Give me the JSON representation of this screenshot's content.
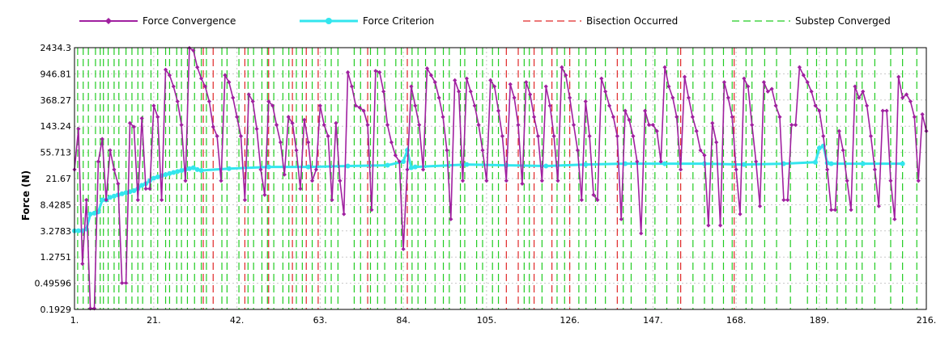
{
  "chart_data": {
    "type": "line",
    "title": "",
    "xlabel": "",
    "ylabel": "Force (N)",
    "y_scale": "log",
    "ylim": [
      0.1929,
      2434.3
    ],
    "xlim": [
      1,
      216
    ],
    "x_ticks": [
      "1.",
      "21.",
      "42.",
      "63.",
      "84.",
      "105.",
      "126.",
      "147.",
      "168.",
      "189.",
      "216."
    ],
    "x_tick_values": [
      1,
      21,
      42,
      63,
      84,
      105,
      126,
      147,
      168,
      189,
      216
    ],
    "y_ticks": [
      "0.1929",
      "0.49596",
      "1.2751",
      "3.2783",
      "8.4285",
      "21.67",
      "55.713",
      "143.24",
      "368.27",
      "946.81",
      "2434.3"
    ],
    "y_tick_values": [
      0.1929,
      0.49596,
      1.2751,
      3.2783,
      8.4285,
      21.67,
      55.713,
      143.24,
      368.27,
      946.81,
      2434.3
    ],
    "grid": true,
    "legend_position": "top",
    "legend": [
      {
        "label": "Force Convergence",
        "color": "#a020a0",
        "style": "solid-diamond"
      },
      {
        "label": "Force Criterion",
        "color": "#33e6ee",
        "style": "solid-circle"
      },
      {
        "label": "Bisection Occurred",
        "color": "#e02828",
        "style": "dashed"
      },
      {
        "label": "Substep Converged",
        "color": "#22cc22",
        "style": "dashed"
      }
    ],
    "series": [
      {
        "name": "Force Convergence",
        "color": "#a020a0",
        "points": [
          [
            1,
            30
          ],
          [
            2,
            130
          ],
          [
            3,
            1
          ],
          [
            4,
            10
          ],
          [
            5,
            0.2
          ],
          [
            6,
            0.2
          ],
          [
            7,
            40
          ],
          [
            8,
            90
          ],
          [
            9,
            10
          ],
          [
            10,
            60
          ],
          [
            11,
            30
          ],
          [
            12,
            18
          ],
          [
            13,
            0.5
          ],
          [
            14,
            0.5
          ],
          [
            15,
            160
          ],
          [
            16,
            140
          ],
          [
            17,
            10
          ],
          [
            18,
            190
          ],
          [
            19,
            15
          ],
          [
            20,
            15
          ],
          [
            21,
            300
          ],
          [
            22,
            200
          ],
          [
            23,
            10
          ],
          [
            24,
            1100
          ],
          [
            25,
            900
          ],
          [
            26,
            600
          ],
          [
            27,
            350
          ],
          [
            28,
            150
          ],
          [
            29,
            20
          ],
          [
            30,
            2400
          ],
          [
            31,
            2200
          ],
          [
            32,
            1200
          ],
          [
            33,
            800
          ],
          [
            34,
            600
          ],
          [
            35,
            350
          ],
          [
            36,
            140
          ],
          [
            37,
            100
          ],
          [
            38,
            20
          ],
          [
            39,
            900
          ],
          [
            40,
            700
          ],
          [
            41,
            400
          ],
          [
            42,
            200
          ],
          [
            43,
            100
          ],
          [
            44,
            10
          ],
          [
            45,
            450
          ],
          [
            46,
            350
          ],
          [
            47,
            130
          ],
          [
            48,
            30
          ],
          [
            49,
            12
          ],
          [
            50,
            350
          ],
          [
            51,
            300
          ],
          [
            52,
            150
          ],
          [
            53,
            80
          ],
          [
            54,
            25
          ],
          [
            55,
            200
          ],
          [
            56,
            160
          ],
          [
            57,
            60
          ],
          [
            58,
            15
          ],
          [
            59,
            180
          ],
          [
            60,
            80
          ],
          [
            61,
            20
          ],
          [
            62,
            30
          ],
          [
            63,
            300
          ],
          [
            64,
            150
          ],
          [
            65,
            100
          ],
          [
            66,
            10
          ],
          [
            67,
            160
          ],
          [
            68,
            20
          ],
          [
            69,
            6
          ],
          [
            70,
            1000
          ],
          [
            71,
            600
          ],
          [
            72,
            300
          ],
          [
            73,
            280
          ],
          [
            74,
            250
          ],
          [
            75,
            150
          ],
          [
            76,
            7
          ],
          [
            77,
            1050
          ],
          [
            78,
            1000
          ],
          [
            79,
            500
          ],
          [
            80,
            150
          ],
          [
            81,
            80
          ],
          [
            82,
            50
          ],
          [
            83,
            40
          ],
          [
            84,
            1.7
          ],
          [
            85,
            30
          ],
          [
            86,
            600
          ],
          [
            87,
            300
          ],
          [
            88,
            150
          ],
          [
            89,
            30
          ],
          [
            90,
            1150
          ],
          [
            91,
            900
          ],
          [
            92,
            700
          ],
          [
            93,
            400
          ],
          [
            94,
            200
          ],
          [
            95,
            60
          ],
          [
            96,
            5
          ],
          [
            97,
            750
          ],
          [
            98,
            500
          ],
          [
            99,
            20
          ],
          [
            100,
            800
          ],
          [
            101,
            500
          ],
          [
            102,
            300
          ],
          [
            103,
            150
          ],
          [
            104,
            60
          ],
          [
            105,
            20
          ],
          [
            106,
            750
          ],
          [
            107,
            600
          ],
          [
            108,
            250
          ],
          [
            109,
            100
          ],
          [
            110,
            20
          ],
          [
            111,
            650
          ],
          [
            112,
            400
          ],
          [
            113,
            150
          ],
          [
            114,
            18
          ],
          [
            115,
            700
          ],
          [
            116,
            450
          ],
          [
            117,
            200
          ],
          [
            118,
            100
          ],
          [
            119,
            20
          ],
          [
            120,
            600
          ],
          [
            121,
            300
          ],
          [
            122,
            100
          ],
          [
            123,
            20
          ],
          [
            124,
            1200
          ],
          [
            125,
            900
          ],
          [
            126,
            400
          ],
          [
            127,
            150
          ],
          [
            128,
            60
          ],
          [
            129,
            10
          ],
          [
            130,
            350
          ],
          [
            131,
            100
          ],
          [
            132,
            12
          ],
          [
            133,
            10
          ],
          [
            134,
            800
          ],
          [
            135,
            500
          ],
          [
            136,
            300
          ],
          [
            137,
            200
          ],
          [
            138,
            100
          ],
          [
            139,
            5
          ],
          [
            140,
            250
          ],
          [
            141,
            180
          ],
          [
            142,
            100
          ],
          [
            143,
            40
          ],
          [
            144,
            3
          ],
          [
            145,
            250
          ],
          [
            146,
            150
          ],
          [
            147,
            150
          ],
          [
            148,
            120
          ],
          [
            149,
            40
          ],
          [
            150,
            1200
          ],
          [
            151,
            600
          ],
          [
            152,
            400
          ],
          [
            153,
            200
          ],
          [
            154,
            30
          ],
          [
            155,
            850
          ],
          [
            156,
            400
          ],
          [
            157,
            200
          ],
          [
            158,
            120
          ],
          [
            159,
            60
          ],
          [
            160,
            50
          ],
          [
            161,
            4
          ],
          [
            162,
            160
          ],
          [
            163,
            80
          ],
          [
            164,
            4
          ],
          [
            165,
            700
          ],
          [
            166,
            400
          ],
          [
            167,
            200
          ],
          [
            168,
            30
          ],
          [
            169,
            6
          ],
          [
            170,
            800
          ],
          [
            171,
            600
          ],
          [
            172,
            150
          ],
          [
            173,
            40
          ],
          [
            174,
            8
          ],
          [
            175,
            700
          ],
          [
            176,
            500
          ],
          [
            177,
            550
          ],
          [
            178,
            300
          ],
          [
            179,
            200
          ],
          [
            180,
            10
          ],
          [
            181,
            10
          ],
          [
            182,
            150
          ],
          [
            183,
            150
          ],
          [
            184,
            1200
          ],
          [
            185,
            900
          ],
          [
            186,
            700
          ],
          [
            187,
            500
          ],
          [
            188,
            300
          ],
          [
            189,
            250
          ],
          [
            190,
            100
          ],
          [
            191,
            30
          ],
          [
            192,
            7
          ],
          [
            193,
            7
          ],
          [
            194,
            120
          ],
          [
            195,
            60
          ],
          [
            196,
            20
          ],
          [
            197,
            7
          ],
          [
            198,
            600
          ],
          [
            199,
            400
          ],
          [
            200,
            500
          ],
          [
            201,
            300
          ],
          [
            202,
            100
          ],
          [
            203,
            30
          ],
          [
            204,
            8
          ],
          [
            205,
            250
          ],
          [
            206,
            250
          ],
          [
            207,
            20
          ],
          [
            208,
            5
          ],
          [
            209,
            850
          ],
          [
            210,
            400
          ],
          [
            211,
            450
          ],
          [
            212,
            350
          ],
          [
            213,
            200
          ],
          [
            214,
            20
          ],
          [
            215,
            220
          ],
          [
            216,
            120
          ],
          [
            217,
            80
          ],
          [
            218,
            10
          ],
          [
            219,
            130
          ],
          [
            220,
            8
          ]
        ]
      },
      {
        "name": "Force Criterion",
        "color": "#33e6ee",
        "points": [
          [
            1,
            3.28
          ],
          [
            2,
            3.3
          ],
          [
            3,
            3.3
          ],
          [
            4,
            3.5
          ],
          [
            5,
            6
          ],
          [
            6,
            6.2
          ],
          [
            7,
            6.5
          ],
          [
            8,
            10
          ],
          [
            9,
            10
          ],
          [
            10,
            11
          ],
          [
            11,
            11.5
          ],
          [
            12,
            12
          ],
          [
            13,
            12.5
          ],
          [
            14,
            13
          ],
          [
            15,
            13.5
          ],
          [
            16,
            14
          ],
          [
            17,
            15
          ],
          [
            18,
            17
          ],
          [
            19,
            18
          ],
          [
            20,
            20
          ],
          [
            21,
            22
          ],
          [
            22,
            23
          ],
          [
            23,
            24
          ],
          [
            24,
            25
          ],
          [
            25,
            26
          ],
          [
            26,
            27
          ],
          [
            27,
            28
          ],
          [
            28,
            29
          ],
          [
            29,
            30
          ],
          [
            30,
            31
          ],
          [
            31,
            32
          ],
          [
            32,
            30
          ],
          [
            33,
            29
          ],
          [
            40,
            31
          ],
          [
            50,
            33
          ],
          [
            60,
            33
          ],
          [
            70,
            34
          ],
          [
            80,
            35
          ],
          [
            84,
            40
          ],
          [
            85,
            60
          ],
          [
            86,
            32
          ],
          [
            87,
            33
          ],
          [
            100,
            36
          ],
          [
            110,
            35
          ],
          [
            120,
            34
          ],
          [
            130,
            36
          ],
          [
            140,
            37
          ],
          [
            150,
            37
          ],
          [
            160,
            37
          ],
          [
            170,
            36
          ],
          [
            180,
            37
          ],
          [
            188,
            39
          ],
          [
            189,
            65
          ],
          [
            190,
            70
          ],
          [
            191,
            38
          ],
          [
            192,
            37
          ],
          [
            200,
            37
          ],
          [
            210,
            37
          ],
          [
            220,
            37
          ]
        ]
      }
    ],
    "bisection_x": [
      33.5,
      36,
      44,
      50,
      56,
      59.5,
      62.5,
      75,
      85,
      110,
      113,
      117,
      121.5,
      126,
      138,
      154,
      167.5
    ],
    "substep_x": [
      1.8,
      3.2,
      4.5,
      6.3,
      7.5,
      8.3,
      9.5,
      11,
      12.2,
      14,
      15.5,
      17,
      18.2,
      20.3,
      22,
      24,
      25,
      26.8,
      28,
      29.5,
      31.3,
      33,
      34.3,
      38.2,
      39.5,
      42.5,
      44.8,
      46.2,
      48.3,
      49.7,
      51.3,
      53.6,
      55.1,
      57,
      58.5,
      61,
      64.3,
      65.8,
      67.5,
      71.6,
      73.2,
      75.7,
      77.5,
      79.3,
      82.1,
      83.5,
      86.2,
      87.7,
      89.6,
      92,
      94.1,
      95.6,
      98.4,
      99.5,
      102.5,
      104,
      106.5,
      108,
      114.5,
      115.8,
      119,
      122.8,
      124.7,
      128.3,
      130.1,
      132.5,
      135,
      139.5,
      141.5,
      145.2,
      147.5,
      150.5,
      153.3,
      157.1,
      160,
      162,
      164.8,
      167,
      170.5,
      172,
      175.2,
      178.2,
      181.7,
      186,
      188.3,
      190.8,
      193.5,
      195.7,
      198.4,
      199.8,
      203,
      207,
      210,
      213.6,
      216.5,
      219.5
    ]
  }
}
